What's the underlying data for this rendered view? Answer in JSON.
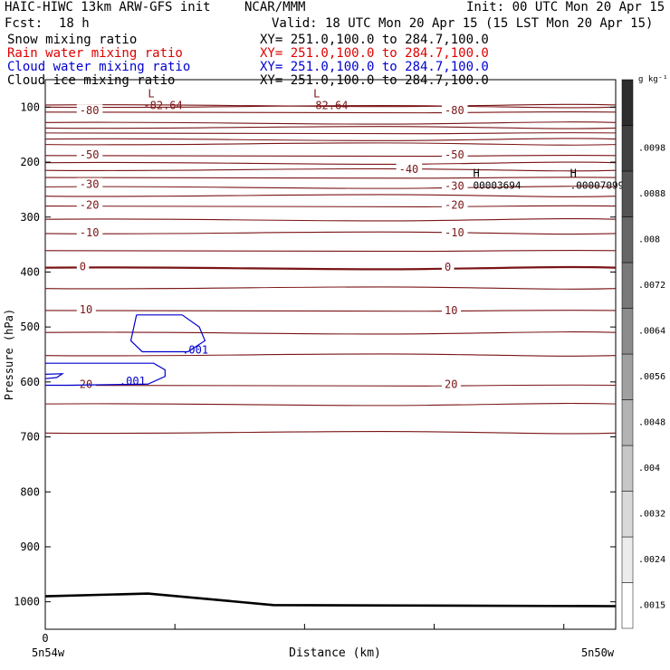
{
  "header": {
    "model": "HAIC-HIWC 13km ARW-GFS init",
    "org": "NCAR/MMM",
    "init": "Init: 00 UTC Mon 20 Apr 15",
    "fcst_label": "Fcst:",
    "fcst_value": "18 h",
    "valid": "Valid: 18 UTC Mon 20 Apr 15 (15 LST Mon 20 Apr 15)",
    "fields": [
      {
        "name": "Snow mixing ratio",
        "xy": "XY= 251.0,100.0 to 284.7,100.0",
        "color": "#000000"
      },
      {
        "name": "Rain water mixing ratio",
        "xy": "XY= 251.0,100.0 to 284.7,100.0",
        "color": "#e00000"
      },
      {
        "name": "Cloud water mixing ratio",
        "xy": "XY= 251.0,100.0 to 284.7,100.0",
        "color": "#0000d0"
      },
      {
        "name": "Cloud ice mixing ratio",
        "xy": "XY= 251.0,100.0 to 284.7,100.0",
        "color": "#000000"
      }
    ]
  },
  "chart_data": {
    "type": "cross-section contour",
    "xlabel": "Distance (km)",
    "ylabel": "Pressure (hPa)",
    "x_start_label": "5n54w",
    "x_end_label": "5n50w",
    "x_zero_tick": "0",
    "y_ticks": [
      100,
      200,
      300,
      400,
      500,
      600,
      700,
      800,
      900,
      1000
    ],
    "ylim": [
      50,
      1050
    ],
    "colorbar": {
      "unit": "g kg⁻¹",
      "levels": [
        ".0015",
        ".0024",
        ".0032",
        ".004",
        ".0048",
        ".0056",
        ".0064",
        ".0072",
        ".008",
        ".0088",
        ".0098"
      ]
    },
    "temperature_contour_labels": [
      {
        "label": "-80",
        "x": 0.06,
        "p": 108
      },
      {
        "label": "-80",
        "x": 0.7,
        "p": 108
      },
      {
        "label": "-50",
        "x": 0.06,
        "p": 188
      },
      {
        "label": "-50",
        "x": 0.7,
        "p": 188
      },
      {
        "label": "-40",
        "x": 0.62,
        "p": 215
      },
      {
        "label": "-30",
        "x": 0.06,
        "p": 242
      },
      {
        "label": "-30",
        "x": 0.7,
        "p": 245
      },
      {
        "label": "-20",
        "x": 0.06,
        "p": 280
      },
      {
        "label": "-20",
        "x": 0.7,
        "p": 280
      },
      {
        "label": "-10",
        "x": 0.06,
        "p": 330
      },
      {
        "label": "-10",
        "x": 0.7,
        "p": 330
      },
      {
        "label": "0",
        "x": 0.06,
        "p": 392
      },
      {
        "label": "0",
        "x": 0.7,
        "p": 393
      },
      {
        "label": "10",
        "x": 0.06,
        "p": 470
      },
      {
        "label": "10",
        "x": 0.7,
        "p": 472
      },
      {
        "label": "20",
        "x": 0.06,
        "p": 606
      },
      {
        "label": "20",
        "x": 0.7,
        "p": 606
      }
    ],
    "temperature_lines_p": [
      96,
      100,
      109,
      128,
      138,
      147,
      158,
      168,
      188,
      201,
      215,
      228,
      245,
      262,
      280,
      304,
      330,
      361,
      392,
      430,
      470,
      510,
      552,
      606,
      640,
      693
    ],
    "minima": [
      {
        "letter": "L",
        "value": "-82.64",
        "x": 0.18,
        "p": 82
      },
      {
        "letter": "L",
        "value": "-82.64",
        "x": 0.47,
        "p": 82
      }
    ],
    "maxima": [
      {
        "letter": "H",
        "value": "00003694",
        "x": 0.75,
        "p": 227
      },
      {
        "letter": "H",
        "value": ".00007099",
        "x": 0.92,
        "p": 227
      }
    ],
    "cloud_water_labels": [
      {
        "label": ".001",
        "x": 0.24,
        "p": 542
      },
      {
        "label": ".001",
        "x": 0.13,
        "p": 599
      }
    ],
    "cloud_water_contours": [
      [
        [
          0.16,
          478
        ],
        [
          0.24,
          478
        ],
        [
          0.27,
          500
        ],
        [
          0.28,
          525
        ],
        [
          0.25,
          545
        ],
        [
          0.17,
          545
        ],
        [
          0.15,
          525
        ],
        [
          0.16,
          478
        ]
      ],
      [
        [
          0.0,
          566
        ],
        [
          0.19,
          566
        ],
        [
          0.21,
          578
        ],
        [
          0.21,
          590
        ],
        [
          0.18,
          604
        ],
        [
          0.04,
          606
        ],
        [
          0.0,
          606
        ]
      ],
      [
        [
          0.0,
          586
        ],
        [
          0.03,
          585
        ],
        [
          0.02,
          592
        ],
        [
          0.0,
          594
        ]
      ]
    ],
    "surface_line": [
      [
        0.0,
        990
      ],
      [
        0.18,
        985
      ],
      [
        0.4,
        1006
      ],
      [
        1.0,
        1008
      ]
    ]
  }
}
